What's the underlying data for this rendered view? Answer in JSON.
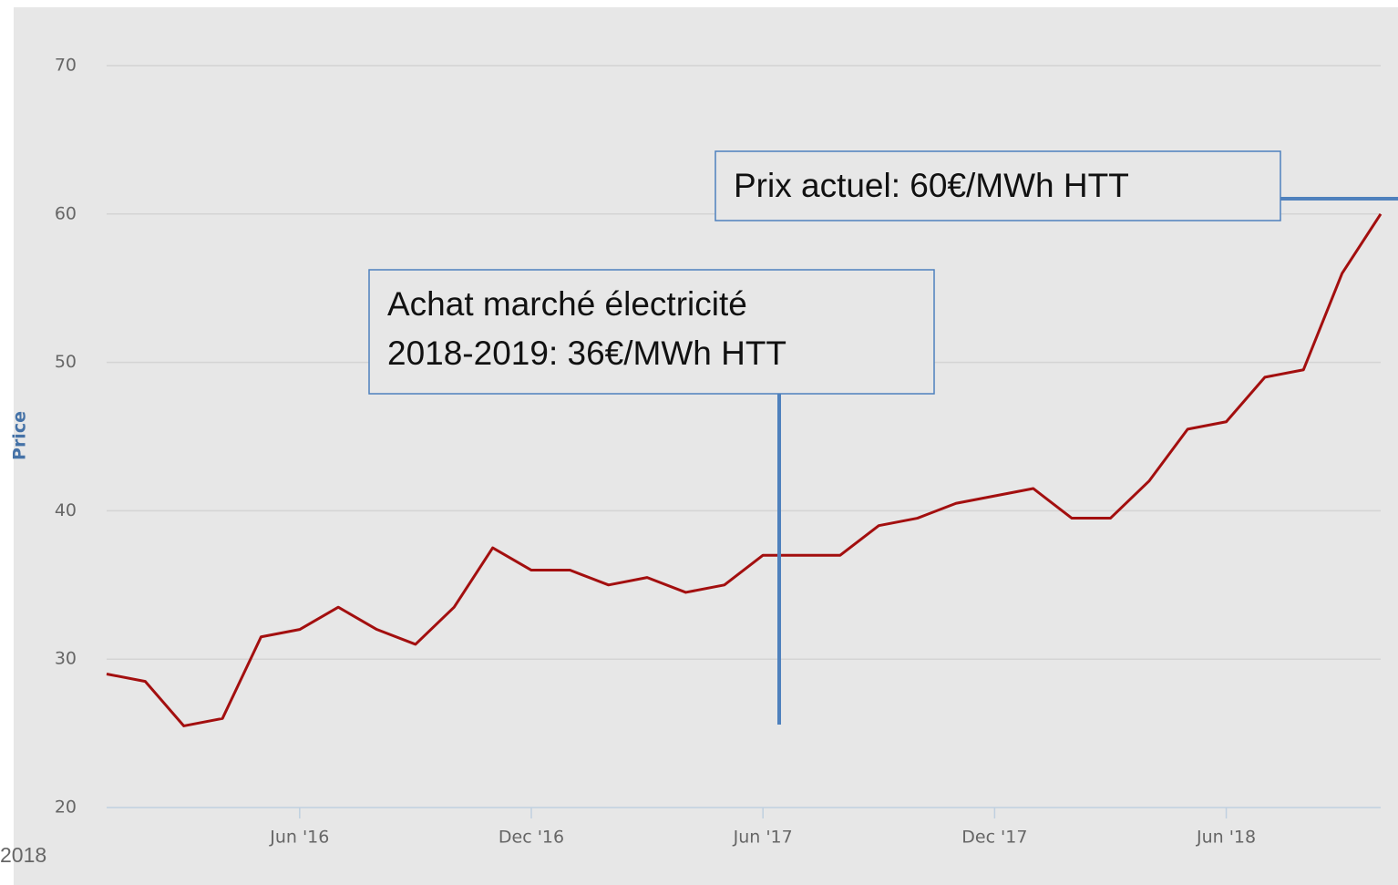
{
  "chart_data": {
    "type": "line",
    "y_label": "Price",
    "x": [
      "2016-01",
      "2016-02",
      "2016-03",
      "2016-04",
      "2016-05",
      "2016-06",
      "2016-07",
      "2016-08",
      "2016-09",
      "2016-10",
      "2016-11",
      "2016-12",
      "2017-01",
      "2017-02",
      "2017-03",
      "2017-04",
      "2017-05",
      "2017-06",
      "2017-07",
      "2017-08",
      "2017-09",
      "2017-10",
      "2017-11",
      "2017-12",
      "2018-01",
      "2018-02",
      "2018-03",
      "2018-04",
      "2018-05",
      "2018-06",
      "2018-07",
      "2018-08",
      "2018-09",
      "2018-10"
    ],
    "values": [
      29,
      28.5,
      25.5,
      26,
      31.5,
      32,
      33.5,
      32,
      31,
      33.5,
      37.5,
      36,
      36,
      35,
      35.5,
      34.5,
      35,
      37,
      37,
      37,
      39,
      39.5,
      40.5,
      41,
      41.5,
      39.5,
      39.5,
      42,
      45.5,
      46,
      49,
      49.5,
      56,
      60
    ],
    "color": "#a30f0f",
    "xlim": [
      "2016-01",
      "2018-10"
    ],
    "xticks": [
      {
        "value": "2016-06",
        "label": "Jun '16"
      },
      {
        "value": "2016-12",
        "label": "Dec '16"
      },
      {
        "value": "2017-06",
        "label": "Jun '17"
      },
      {
        "value": "2017-12",
        "label": "Dec '17"
      },
      {
        "value": "2018-06",
        "label": "Jun '18"
      }
    ],
    "ylim": [
      20,
      70
    ],
    "yticks": [
      20,
      30,
      40,
      50,
      60,
      70
    ],
    "grid": true,
    "annotations": [
      {
        "lines": [
          "Prix actuel: 60€/MWh HTT"
        ]
      },
      {
        "lines": [
          "Achat marché électricité",
          "2018-2019: 36€/MWh HTT"
        ]
      }
    ],
    "footnote": "2018"
  }
}
